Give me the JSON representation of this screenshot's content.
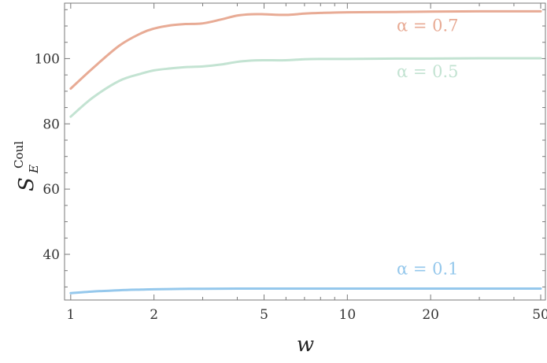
{
  "chart_data": {
    "type": "line",
    "xlabel": "w",
    "ylabel": {
      "base": "S",
      "sub": "E",
      "sup": "Coul"
    },
    "x_scale": "log",
    "xlim": [
      0.95,
      52
    ],
    "ylim": [
      26,
      117
    ],
    "x_ticks": [
      1,
      2,
      5,
      10,
      20,
      50
    ],
    "x_tick_labels": [
      "1",
      "2",
      "5",
      "10",
      "20",
      "50"
    ],
    "y_ticks": [
      40,
      60,
      80,
      100
    ],
    "y_tick_labels": [
      "40",
      "60",
      "80",
      "100"
    ],
    "grid": false,
    "series": [
      {
        "name": "α = 0.7",
        "color": "#e8ab95",
        "x": [
          1,
          1.2,
          1.5,
          1.8,
          2,
          2.3,
          2.6,
          3,
          3.5,
          4,
          4.5,
          5,
          6,
          7,
          8,
          10,
          15,
          20,
          30,
          50
        ],
        "y": [
          90.8,
          97,
          104,
          107.8,
          109.2,
          110.2,
          110.6,
          110.8,
          112,
          113.2,
          113.6,
          113.6,
          113.4,
          113.8,
          114,
          114.2,
          114.3,
          114.4,
          114.5,
          114.5
        ]
      },
      {
        "name": "α = 0.5",
        "color": "#c3e3d2",
        "x": [
          1,
          1.2,
          1.5,
          1.8,
          2,
          2.3,
          2.6,
          3,
          3.5,
          4,
          4.5,
          5,
          6,
          7,
          8,
          10,
          15,
          20,
          30,
          50
        ],
        "y": [
          82.2,
          88,
          93.2,
          95.4,
          96.4,
          97,
          97.4,
          97.6,
          98.2,
          99,
          99.4,
          99.5,
          99.5,
          99.8,
          99.9,
          99.9,
          100,
          100,
          100.1,
          100.1
        ]
      },
      {
        "name": "α = 0.1",
        "color": "#95c8ec",
        "x": [
          1,
          1.2,
          1.5,
          1.8,
          2,
          2.5,
          3,
          4,
          5,
          7,
          10,
          20,
          30,
          50
        ],
        "y": [
          28.1,
          28.6,
          29,
          29.2,
          29.3,
          29.4,
          29.45,
          29.5,
          29.5,
          29.5,
          29.5,
          29.5,
          29.5,
          29.5
        ]
      }
    ],
    "curve_labels": [
      {
        "text": "α = 0.7",
        "color": "#e8ab95",
        "x": 19.5,
        "y": 108.4
      },
      {
        "text": "α = 0.5",
        "color": "#c3e3d2",
        "x": 19.5,
        "y": 94.3
      },
      {
        "text": "α = 0.1",
        "color": "#95c8ec",
        "x": 19.5,
        "y": 33.8
      }
    ]
  }
}
